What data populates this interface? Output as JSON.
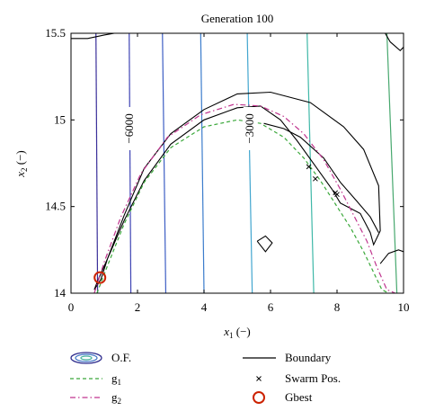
{
  "chart_data": {
    "type": "contour",
    "title": "Generation 100",
    "xlabel": "x",
    "xlabel_sub": "1",
    "xlabel_unit": " (−)",
    "ylabel": "x",
    "ylabel_sub": "2",
    "ylabel_unit": " (−)",
    "xlim": [
      0,
      10
    ],
    "ylim": [
      14,
      15.5
    ],
    "xticks": [
      0,
      2,
      4,
      6,
      8,
      10
    ],
    "xtick_labels": [
      "0",
      "2",
      "4",
      "6",
      "8",
      "10"
    ],
    "yticks": [
      14,
      14.5,
      15,
      15.5
    ],
    "ytick_labels": [
      "14",
      "14.5",
      "15",
      "15.5"
    ],
    "grid": false,
    "legend_placement": "below",
    "contour_levels": [
      {
        "x_bottom": 0.8,
        "x_top": 0.75,
        "color": "#3a2f9a"
      },
      {
        "x_bottom": 1.8,
        "x_top": 1.75,
        "color": "#3f44b4",
        "label": "−6000",
        "label_x": 1.78,
        "label_y": 14.95
      },
      {
        "x_bottom": 2.85,
        "x_top": 2.75,
        "color": "#3d5ec4"
      },
      {
        "x_bottom": 4.0,
        "x_top": 3.9,
        "color": "#3b7ccc"
      },
      {
        "x_bottom": 5.45,
        "x_top": 5.3,
        "color": "#42a6cf",
        "label": "−3000",
        "label_x": 5.4,
        "label_y": 14.95
      },
      {
        "x_bottom": 7.3,
        "x_top": 7.1,
        "color": "#3fb8a8"
      },
      {
        "x_bottom": 9.8,
        "x_top": 9.5,
        "color": "#47a86e"
      }
    ],
    "boundary": {
      "name": "Boundary",
      "main_region": [
        [
          0.7,
          14.02
        ],
        [
          0.9,
          14.08
        ],
        [
          1.1,
          14.2
        ],
        [
          1.6,
          14.42
        ],
        [
          2.2,
          14.65
        ],
        [
          3.0,
          14.86
        ],
        [
          4.0,
          15.0
        ],
        [
          5.0,
          15.07
        ],
        [
          5.7,
          15.08
        ],
        [
          6.3,
          15.0
        ],
        [
          6.8,
          14.88
        ],
        [
          7.4,
          14.72
        ],
        [
          7.85,
          14.6
        ],
        [
          8.1,
          14.52
        ],
        [
          8.7,
          14.46
        ],
        [
          9.0,
          14.35
        ],
        [
          9.1,
          14.28
        ],
        [
          9.3,
          14.36
        ],
        [
          9.25,
          14.62
        ],
        [
          8.8,
          14.83
        ],
        [
          8.2,
          14.96
        ],
        [
          7.2,
          15.1
        ],
        [
          6.0,
          15.16
        ],
        [
          5.0,
          15.15
        ],
        [
          4.0,
          15.06
        ],
        [
          3.0,
          14.92
        ],
        [
          2.2,
          14.72
        ],
        [
          1.6,
          14.45
        ],
        [
          1.1,
          14.2
        ],
        [
          0.8,
          14.07
        ],
        [
          0.7,
          14.02
        ]
      ],
      "blob_right": [
        [
          5.8,
          14.98
        ],
        [
          6.4,
          14.95
        ],
        [
          6.9,
          14.9
        ],
        [
          7.6,
          14.78
        ],
        [
          8.1,
          14.64
        ],
        [
          8.6,
          14.53
        ],
        [
          9.0,
          14.44
        ],
        [
          9.25,
          14.35
        ]
      ],
      "island": [
        [
          5.6,
          14.3
        ],
        [
          5.85,
          14.33
        ],
        [
          6.05,
          14.29
        ],
        [
          5.85,
          14.24
        ],
        [
          5.6,
          14.3
        ]
      ],
      "corner_right": [
        [
          9.3,
          14.17
        ],
        [
          9.55,
          14.23
        ],
        [
          9.85,
          14.25
        ],
        [
          10.0,
          14.24
        ]
      ],
      "corner_top_right": [
        [
          9.45,
          15.5
        ],
        [
          9.6,
          15.45
        ],
        [
          9.9,
          15.4
        ],
        [
          10.0,
          15.42
        ]
      ],
      "top_left": [
        [
          0.0,
          15.47
        ],
        [
          0.5,
          15.47
        ],
        [
          1.0,
          15.49
        ],
        [
          1.3,
          15.5
        ]
      ]
    },
    "g1": {
      "name": "g",
      "name_sub": "1",
      "x": [
        0.78,
        1.1,
        1.6,
        2.2,
        3.0,
        4.0,
        5.0,
        5.7,
        6.4,
        7.0,
        7.5,
        8.0,
        8.4,
        8.8,
        9.1,
        9.35,
        9.55
      ],
      "y": [
        14.0,
        14.16,
        14.4,
        14.64,
        14.84,
        14.96,
        15.0,
        14.98,
        14.9,
        14.78,
        14.65,
        14.5,
        14.38,
        14.24,
        14.12,
        14.02,
        14.0
      ]
    },
    "g2": {
      "name": "g",
      "name_sub": "2",
      "x": [
        0.7,
        1.0,
        1.5,
        2.1,
        2.9,
        3.9,
        4.9,
        5.7,
        6.4,
        7.0,
        7.6,
        8.1,
        8.5,
        8.9,
        9.2,
        9.5,
        9.75
      ],
      "y": [
        14.0,
        14.18,
        14.44,
        14.69,
        14.9,
        15.03,
        15.09,
        15.08,
        15.02,
        14.92,
        14.77,
        14.6,
        14.45,
        14.3,
        14.15,
        14.02,
        14.0
      ]
    },
    "swarm": {
      "name": "Swarm Pos.",
      "x": [
        7.15,
        7.35,
        7.95,
        8.0
      ],
      "y": [
        14.73,
        14.66,
        14.58,
        14.57
      ]
    },
    "gbest": {
      "name": "Gbest",
      "x": 0.87,
      "y": 14.09
    },
    "legend": {
      "of_label": "O.F.",
      "boundary_label": "Boundary",
      "g1_label": "g",
      "g1_sub": "1",
      "g2_label": "g",
      "g2_sub": "2",
      "swarm_label": "Swarm Pos.",
      "gbest_label": "Gbest"
    },
    "colors": {
      "g1": "#3aa83a",
      "g2": "#c0358f",
      "boundary": "#000000",
      "gbest": "#cc2200"
    }
  }
}
